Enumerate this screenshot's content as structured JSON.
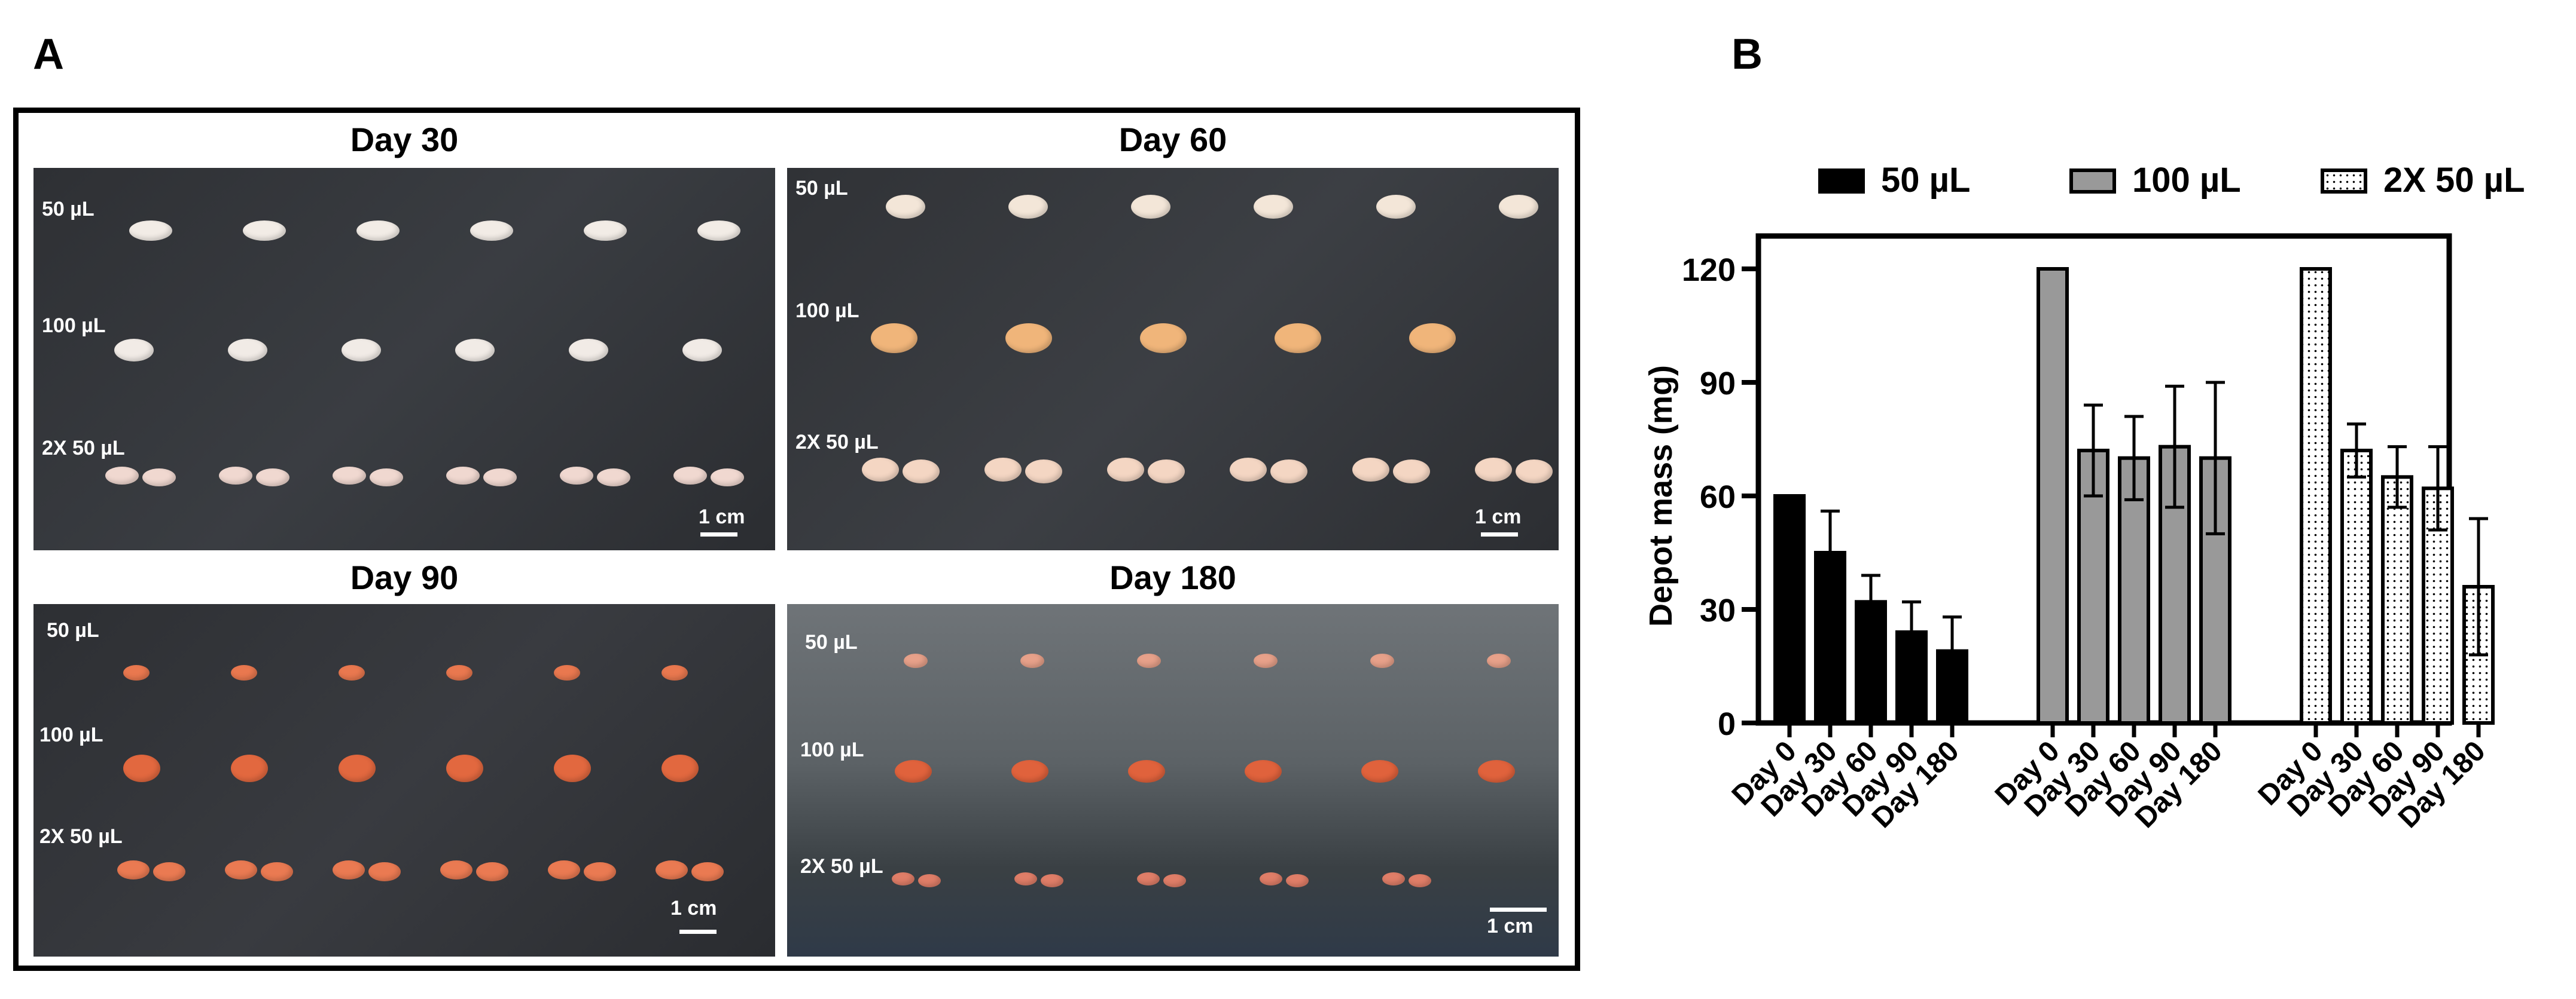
{
  "panel_a": {
    "letter": "A",
    "photos": [
      {
        "title": "Day 30",
        "scale": "1 cm",
        "rows": [
          "50 µL",
          "100 µL",
          "2X 50 µL"
        ]
      },
      {
        "title": "Day 60",
        "scale": "1 cm",
        "rows": [
          "50 µL",
          "100 µL",
          "2X 50 µL"
        ]
      },
      {
        "title": "Day 90",
        "scale": "1 cm",
        "rows": [
          "50 µL",
          "100 µL",
          "2X 50 µL"
        ]
      },
      {
        "title": "Day 180",
        "scale": "1 cm",
        "rows": [
          "50 µL",
          "100 µL",
          "2X 50 µL"
        ]
      }
    ]
  },
  "panel_b": {
    "letter": "B",
    "legend": [
      {
        "label": "50 µL",
        "fill": "#000000",
        "pattern": "solid"
      },
      {
        "label": "100 µL",
        "fill": "#999999",
        "pattern": "solid"
      },
      {
        "label": "2X 50 µL",
        "fill": "#ffffff",
        "pattern": "dotted"
      }
    ]
  },
  "chart_data": {
    "type": "bar",
    "title": "",
    "xlabel": "",
    "ylabel": "Depot mass (mg)",
    "ylim": [
      0,
      120
    ],
    "yticks": [
      0,
      30,
      60,
      90,
      120
    ],
    "categories": [
      "Day 0",
      "Day 30",
      "Day 60",
      "Day 90",
      "Day 180"
    ],
    "grid": false,
    "legend_position": "top",
    "series": [
      {
        "name": "50 µL",
        "color": "#000000",
        "pattern": "solid",
        "values": [
          60,
          45,
          32,
          24,
          19
        ],
        "errors": [
          0,
          11,
          7,
          8,
          9
        ]
      },
      {
        "name": "100 µL",
        "color": "#999999",
        "pattern": "solid",
        "values": [
          120,
          72,
          70,
          73,
          70
        ],
        "errors": [
          0,
          12,
          11,
          16,
          20
        ]
      },
      {
        "name": "2X 50 µL",
        "color": "#ffffff",
        "pattern": "dotted",
        "values": [
          120,
          72,
          65,
          62,
          36
        ],
        "errors": [
          0,
          7,
          8,
          11,
          18
        ]
      }
    ]
  }
}
